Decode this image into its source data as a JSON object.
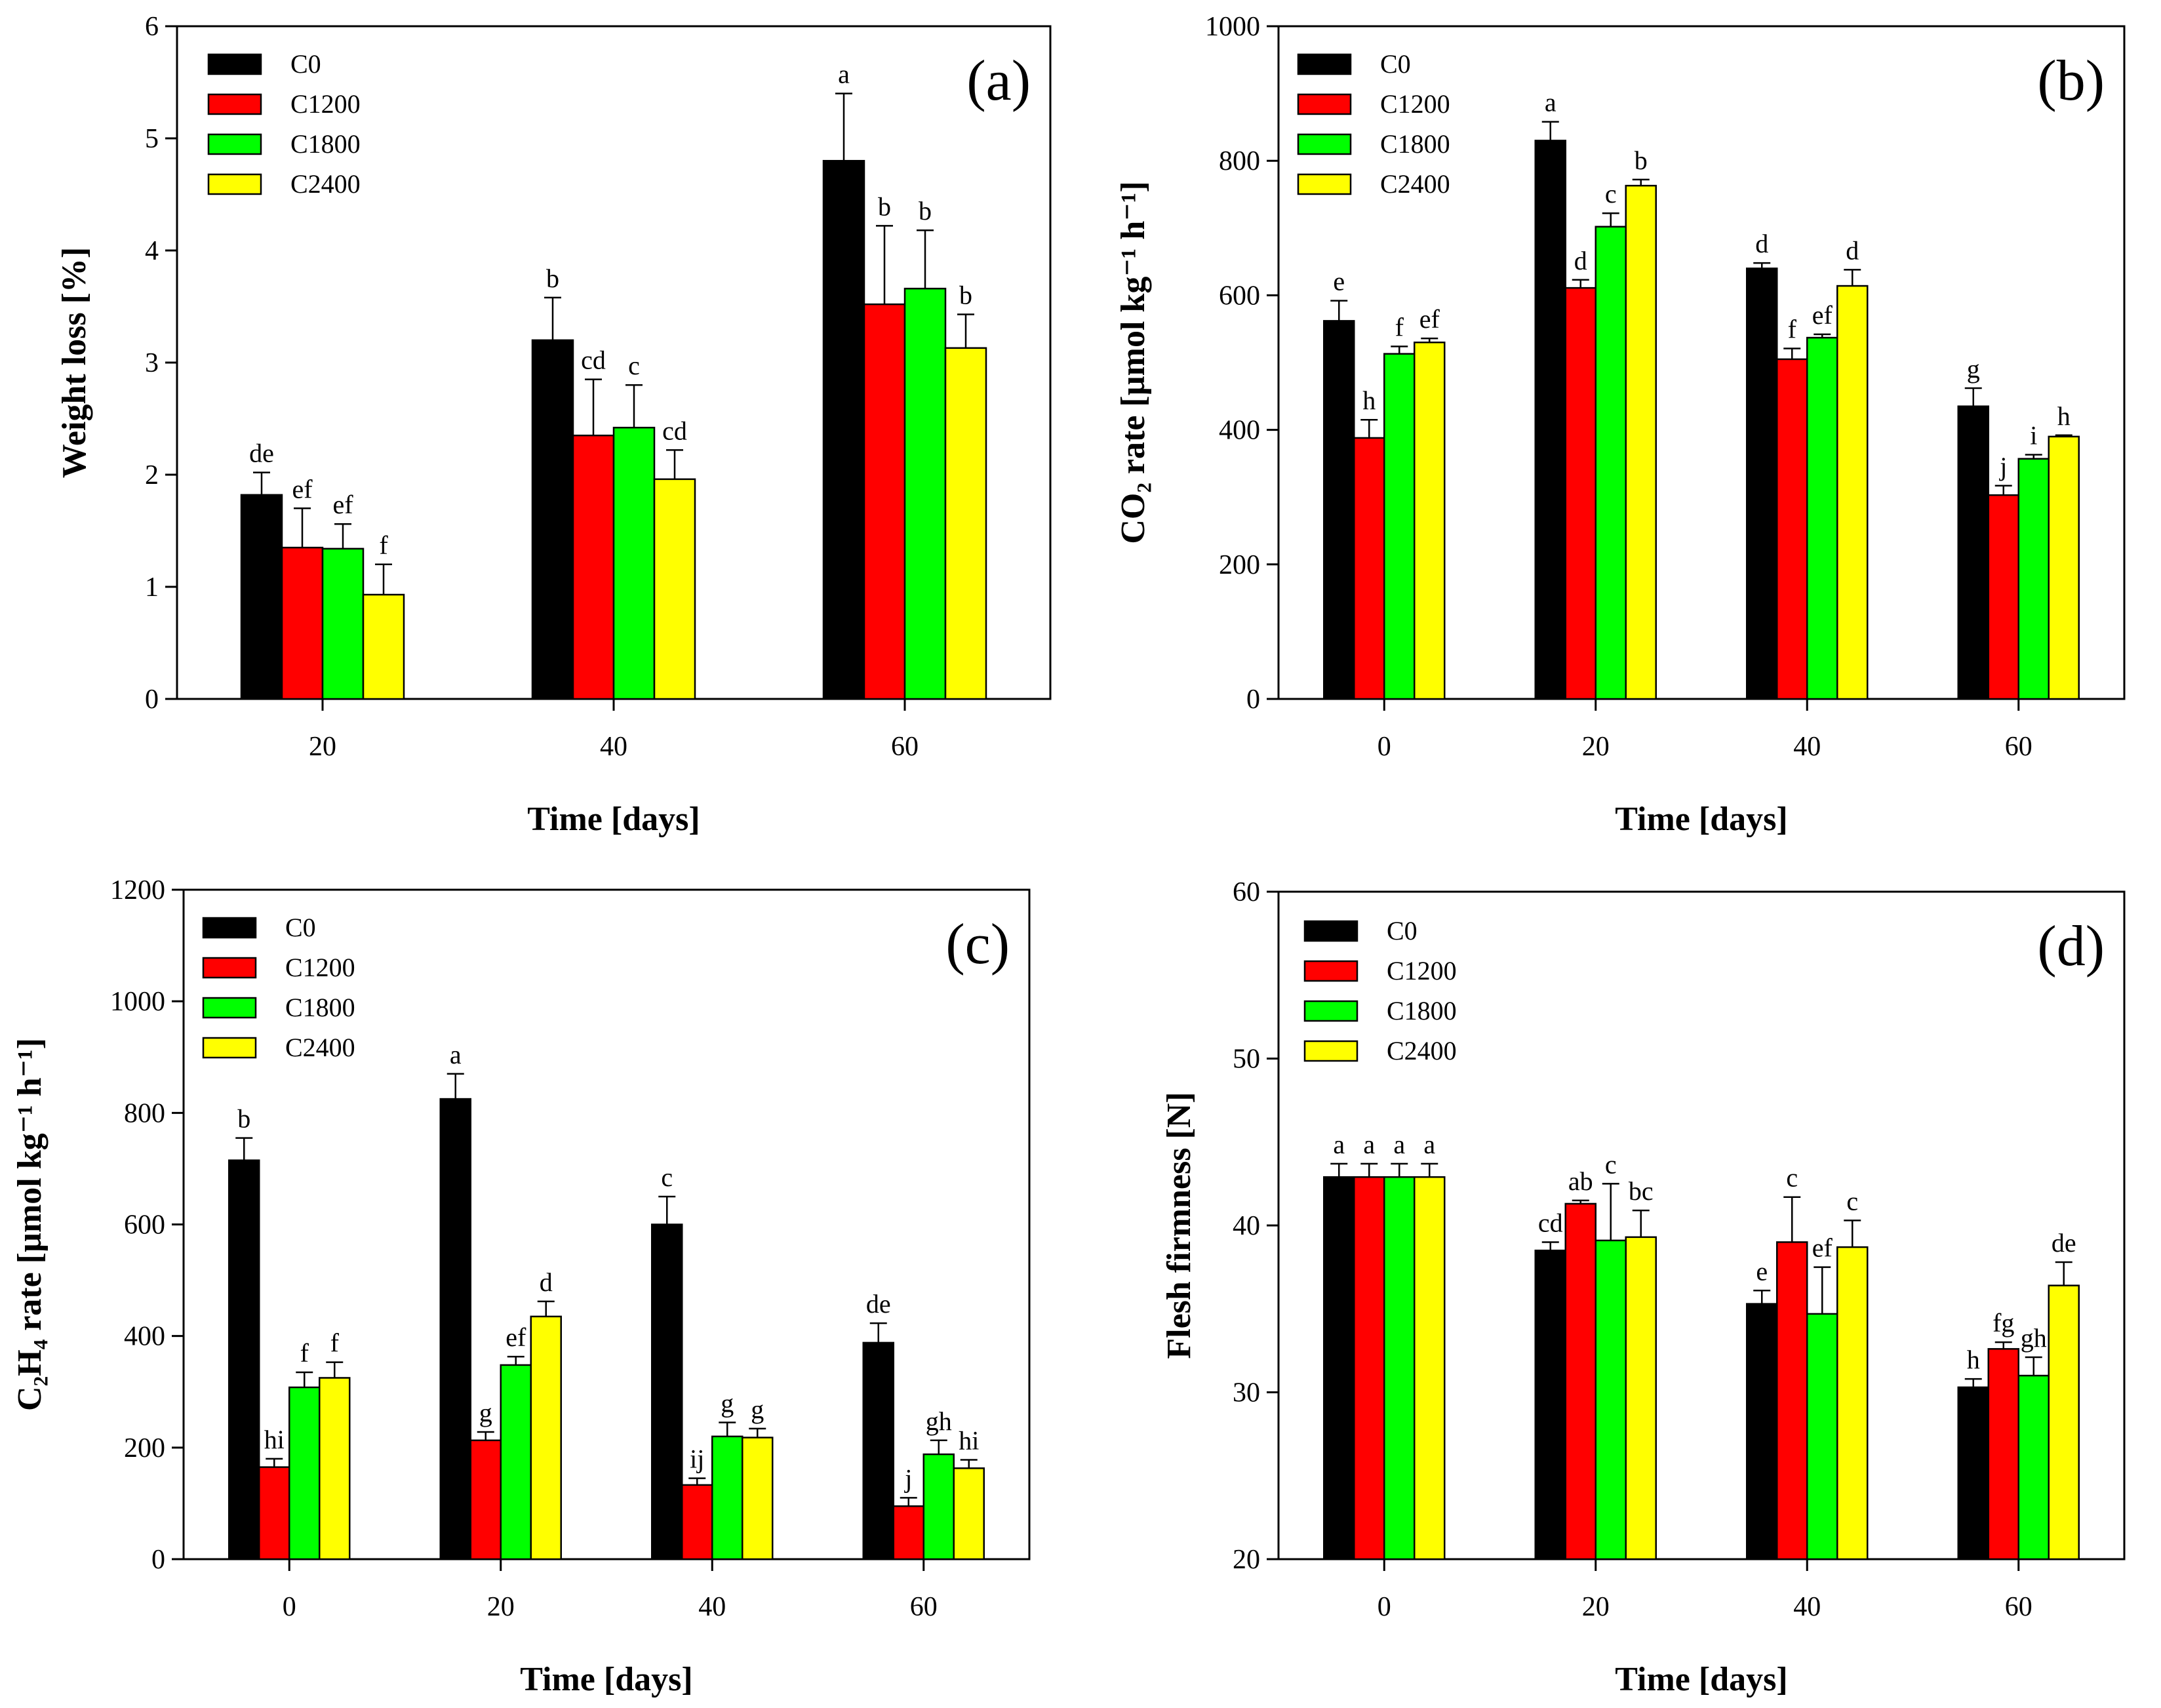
{
  "series_colors": {
    "C0": "#000000",
    "C1200": "#ff0000",
    "C1800": "#00ff00",
    "C2400": "#ffff00"
  },
  "chart_data": [
    {
      "type": "bar",
      "panel_label": "(a)",
      "xlabel": "Time [days]",
      "ylabel": "Weight loss [%]",
      "categories": [
        "20",
        "40",
        "60"
      ],
      "ylim": [
        0,
        6
      ],
      "yticks": [
        "0",
        "1",
        "2",
        "3",
        "4",
        "5",
        "6"
      ],
      "legend": [
        "C0",
        "C1200",
        "C1800",
        "C2400"
      ],
      "legend_position": "top-left",
      "series": [
        {
          "name": "C0",
          "values": [
            1.82,
            3.2,
            4.8
          ],
          "errors": [
            0.2,
            0.38,
            0.6
          ],
          "letters": [
            "de",
            "b",
            "a"
          ]
        },
        {
          "name": "C1200",
          "values": [
            1.35,
            2.35,
            3.52
          ],
          "errors": [
            0.35,
            0.5,
            0.7
          ],
          "letters": [
            "ef",
            "cd",
            "b"
          ]
        },
        {
          "name": "C1800",
          "values": [
            1.34,
            2.42,
            3.66
          ],
          "errors": [
            0.22,
            0.38,
            0.52
          ],
          "letters": [
            "ef",
            "c",
            "b"
          ]
        },
        {
          "name": "C2400",
          "values": [
            0.93,
            1.96,
            3.13
          ],
          "errors": [
            0.27,
            0.26,
            0.3
          ],
          "letters": [
            "f",
            "cd",
            "b"
          ]
        }
      ]
    },
    {
      "type": "bar",
      "panel_label": "(b)",
      "xlabel": "Time [days]",
      "ylabel": "CO₂ rate [µmol kg⁻¹ h⁻¹]",
      "categories": [
        "0",
        "20",
        "40",
        "60"
      ],
      "ylim": [
        0,
        1000
      ],
      "yticks": [
        "0",
        "200",
        "400",
        "600",
        "800",
        "1000"
      ],
      "legend": [
        "C0",
        "C1200",
        "C1800",
        "C2400"
      ],
      "legend_position": "top-left",
      "series": [
        {
          "name": "C0",
          "values": [
            562,
            830,
            640,
            435
          ],
          "errors": [
            30,
            28,
            8,
            27
          ],
          "letters": [
            "e",
            "a",
            "d",
            "g"
          ]
        },
        {
          "name": "C1200",
          "values": [
            388,
            611,
            505,
            303
          ],
          "errors": [
            27,
            12,
            16,
            14
          ],
          "letters": [
            "h",
            "d",
            "f",
            "j"
          ]
        },
        {
          "name": "C1800",
          "values": [
            513,
            702,
            537,
            357
          ],
          "errors": [
            11,
            20,
            5,
            6
          ],
          "letters": [
            "f",
            "c",
            "ef",
            "i"
          ]
        },
        {
          "name": "C2400",
          "values": [
            530,
            763,
            614,
            390
          ],
          "errors": [
            6,
            9,
            24,
            2
          ],
          "letters": [
            "ef",
            "b",
            "d",
            "h"
          ]
        }
      ]
    },
    {
      "type": "bar",
      "panel_label": "(c)",
      "xlabel": "Time [days]",
      "ylabel": "C₂H₄ rate [µmol kg⁻¹ h⁻¹]",
      "categories": [
        "0",
        "20",
        "40",
        "60"
      ],
      "ylim": [
        0,
        1200
      ],
      "yticks": [
        "0",
        "200",
        "400",
        "600",
        "800",
        "1000",
        "1200"
      ],
      "legend": [
        "C0",
        "C1200",
        "C1800",
        "C2400"
      ],
      "legend_position": "top-left",
      "series": [
        {
          "name": "C0",
          "values": [
            715,
            825,
            600,
            388
          ],
          "errors": [
            40,
            45,
            50,
            35
          ],
          "letters": [
            "b",
            "a",
            "c",
            "de"
          ]
        },
        {
          "name": "C1200",
          "values": [
            165,
            213,
            133,
            95
          ],
          "errors": [
            15,
            15,
            12,
            15
          ],
          "letters": [
            "hi",
            "g",
            "ij",
            "j"
          ]
        },
        {
          "name": "C1800",
          "values": [
            308,
            348,
            220,
            188
          ],
          "errors": [
            27,
            15,
            25,
            25
          ],
          "letters": [
            "f",
            "ef",
            "g",
            "gh"
          ]
        },
        {
          "name": "C2400",
          "values": [
            325,
            435,
            218,
            163
          ],
          "errors": [
            28,
            27,
            16,
            15
          ],
          "letters": [
            "f",
            "d",
            "g",
            "hi"
          ]
        }
      ]
    },
    {
      "type": "bar",
      "panel_label": "(d)",
      "xlabel": "Time [days]",
      "ylabel": "Flesh firmness [N]",
      "categories": [
        "0",
        "20",
        "40",
        "60"
      ],
      "ylim": [
        20,
        60
      ],
      "yticks": [
        "20",
        "30",
        "40",
        "50",
        "60"
      ],
      "legend": [
        "C0",
        "C1200",
        "C1800",
        "C2400"
      ],
      "legend_position": "top-left",
      "series": [
        {
          "name": "C0",
          "values": [
            42.9,
            38.5,
            35.3,
            30.3
          ],
          "errors": [
            0.8,
            0.5,
            0.8,
            0.5
          ],
          "letters": [
            "a",
            "cd",
            "e",
            "h"
          ]
        },
        {
          "name": "C1200",
          "values": [
            42.9,
            41.3,
            39.0,
            32.6
          ],
          "errors": [
            0.8,
            0.2,
            2.7,
            0.4
          ],
          "letters": [
            "a",
            "ab",
            "c",
            "fg"
          ]
        },
        {
          "name": "C1800",
          "values": [
            42.9,
            39.1,
            34.7,
            31.0
          ],
          "errors": [
            0.8,
            3.4,
            2.8,
            1.1
          ],
          "letters": [
            "a",
            "c",
            "ef",
            "gh"
          ]
        },
        {
          "name": "C2400",
          "values": [
            42.9,
            39.3,
            38.7,
            36.4
          ],
          "errors": [
            0.8,
            1.6,
            1.6,
            1.4
          ],
          "letters": [
            "a",
            "bc",
            "c",
            "de"
          ]
        }
      ]
    }
  ]
}
